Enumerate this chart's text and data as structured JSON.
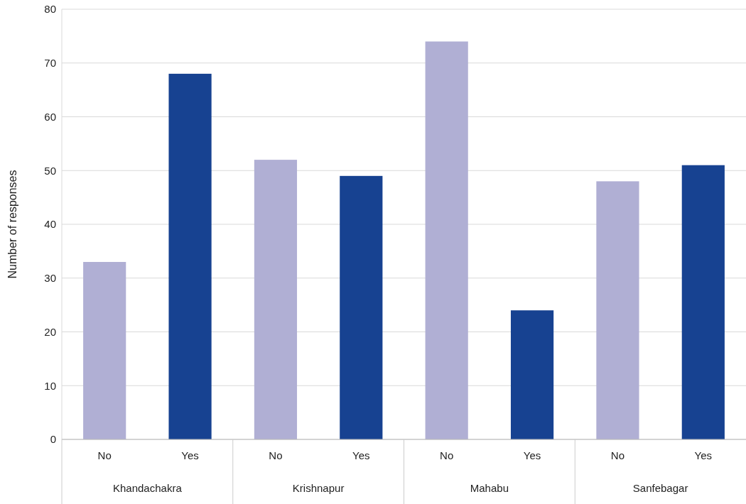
{
  "chart_data": {
    "type": "bar",
    "ylabel": "Number of responses",
    "categories": [
      "Khandachakra",
      "Krishnapur",
      "Mahabu",
      "Sanfebagar"
    ],
    "series": [
      {
        "name": "No",
        "color": "#b0afd4",
        "values": [
          33,
          52,
          74,
          48
        ]
      },
      {
        "name": "Yes",
        "color": "#174291",
        "values": [
          68,
          49,
          24,
          51
        ]
      }
    ],
    "ylim": [
      0,
      80
    ],
    "yticks": [
      0,
      10,
      20,
      30,
      40,
      50,
      60,
      70,
      80
    ],
    "grid": "y"
  }
}
